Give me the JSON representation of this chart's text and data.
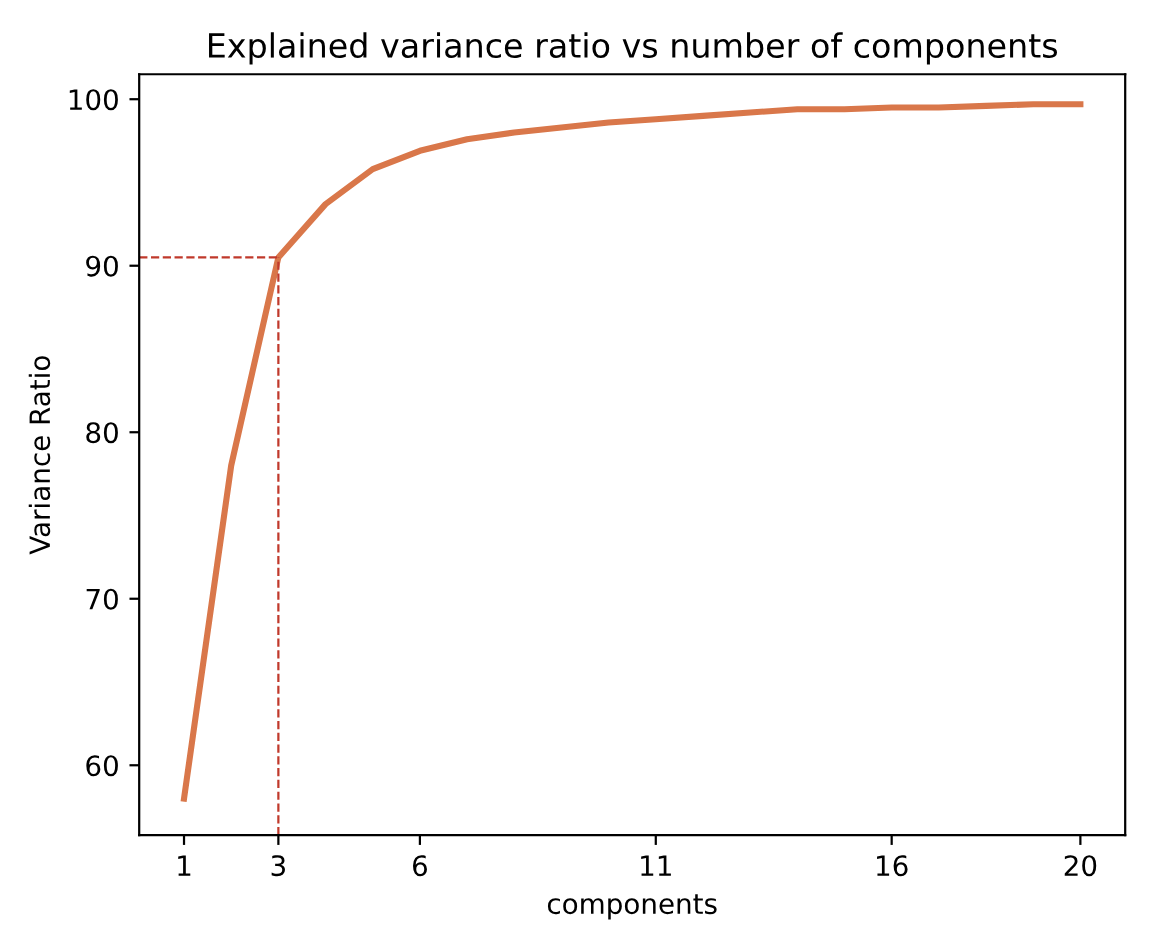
{
  "chart_data": {
    "type": "line",
    "title": "Explained variance ratio vs number of components",
    "xlabel": "components",
    "ylabel": "Variance Ratio",
    "x": [
      1,
      2,
      3,
      4,
      5,
      6,
      7,
      8,
      9,
      10,
      11,
      12,
      13,
      14,
      15,
      16,
      17,
      18,
      19,
      20
    ],
    "series": [
      {
        "color": "#d9774a",
        "values": [
          58,
          78,
          90.5,
          93.7,
          95.8,
          96.9,
          97.6,
          98.0,
          98.3,
          98.6,
          98.8,
          99.0,
          99.2,
          99.4,
          99.4,
          99.5,
          99.5,
          99.6,
          99.7,
          99.7
        ]
      }
    ],
    "xlim": [
      0.05,
      20.95
    ],
    "ylim": [
      55.8,
      101.5
    ],
    "xticks": [
      1,
      3,
      6,
      11,
      16,
      20
    ],
    "yticks": [
      60,
      70,
      80,
      90,
      100
    ],
    "ref_lines": [
      {
        "axis": "x",
        "value": 3,
        "color": "#c0392b",
        "line_style": "dashed"
      },
      {
        "axis": "y",
        "value": 90.5,
        "color": "#c0392b",
        "line_style": "dashed"
      }
    ],
    "grid": false,
    "legend": false,
    "marker": "none",
    "line_style": "solid"
  }
}
